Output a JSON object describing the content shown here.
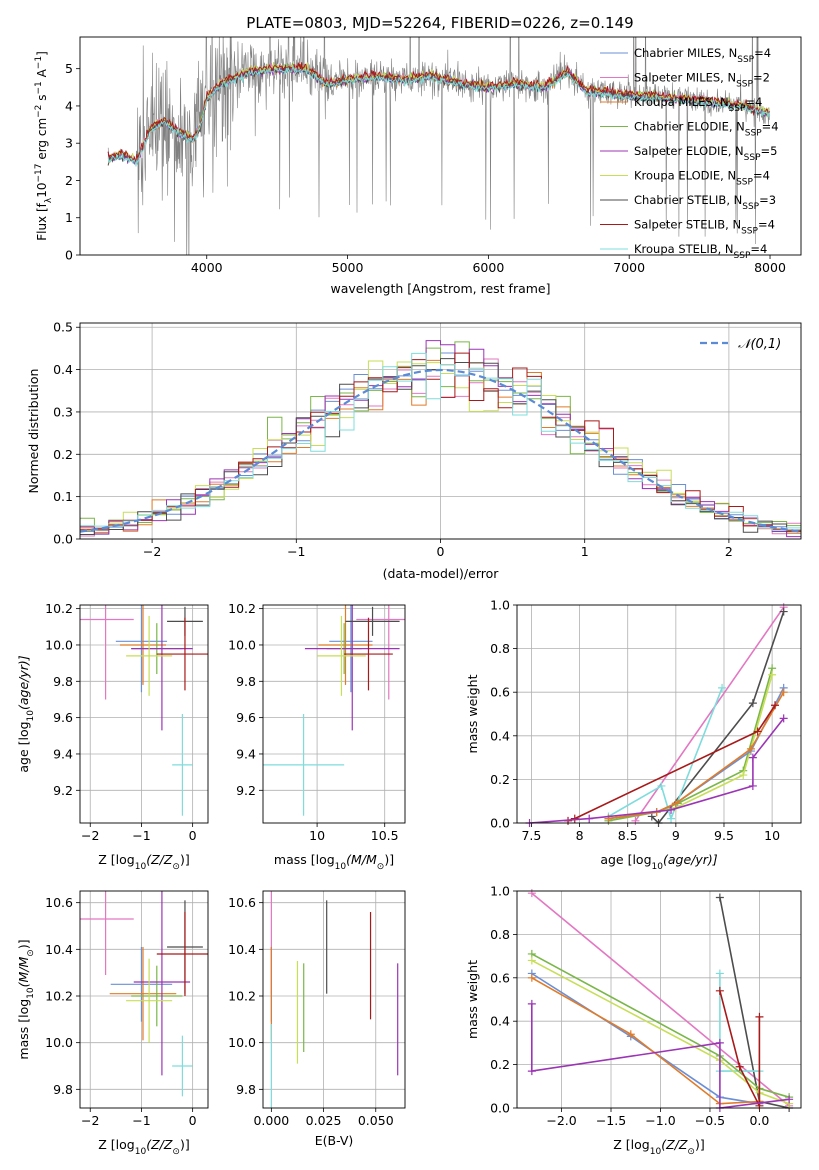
{
  "figure": {
    "title": "PLATE=0803, MJD=52264, FIBERID=0226, z=0.149"
  },
  "chart_data": [
    {
      "id": "spectrum",
      "type": "line",
      "title": "PLATE=0803, MJD=52264, FIBERID=0226, z=0.149",
      "xlabel": "wavelength [Angstrom, rest frame]",
      "ylabel_parts": [
        "Flux [f",
        "λ",
        "10",
        "−17",
        " erg cm",
        "−2",
        " s",
        "−1",
        " A",
        "−1",
        "]"
      ],
      "xlim": [
        3100,
        8220
      ],
      "ylim": [
        0,
        5.85
      ],
      "xticks": [
        4000,
        5000,
        6000,
        7000,
        8000
      ],
      "yticks": [
        0,
        1,
        2,
        3,
        4,
        5
      ],
      "grid": false,
      "legend_position": "top-right",
      "data_color": "#808080",
      "data_knots": [
        [
          3300,
          2.6
        ],
        [
          3400,
          2.7
        ],
        [
          3500,
          2.5
        ],
        [
          3600,
          3.4
        ],
        [
          3700,
          3.6
        ],
        [
          3800,
          3.3
        ],
        [
          3900,
          3.1
        ],
        [
          3950,
          3.4
        ],
        [
          4000,
          4.2
        ],
        [
          4100,
          4.6
        ],
        [
          4300,
          4.9
        ],
        [
          4500,
          5.0
        ],
        [
          4700,
          5.0
        ],
        [
          4861,
          4.6
        ],
        [
          5000,
          4.7
        ],
        [
          5200,
          4.8
        ],
        [
          5400,
          4.7
        ],
        [
          5600,
          4.8
        ],
        [
          5800,
          4.6
        ],
        [
          6000,
          4.5
        ],
        [
          6200,
          4.6
        ],
        [
          6400,
          4.5
        ],
        [
          6563,
          4.9
        ],
        [
          6700,
          4.4
        ],
        [
          7000,
          4.3
        ],
        [
          7300,
          4.2
        ],
        [
          7600,
          4.1
        ],
        [
          7800,
          4.0
        ],
        [
          8000,
          3.8
        ]
      ],
      "noise_regions": [
        [
          3500,
          4200,
          0.9
        ],
        [
          4200,
          4900,
          0.45
        ],
        [
          4900,
          5800,
          0.28
        ],
        [
          5800,
          7000,
          0.22
        ],
        [
          7000,
          8000,
          0.18
        ]
      ],
      "models": [
        {
          "name": "Chabrier MILES, N",
          "sub": "SSP",
          "suffix": "=4",
          "color": "#6b8fd6",
          "offset": 0.0
        },
        {
          "name": "Salpeter MILES, N",
          "sub": "SSP",
          "suffix": "=2",
          "color": "#e377c2",
          "offset": 0.03
        },
        {
          "name": "Kroupa MILES, N",
          "sub": "SSP",
          "suffix": "=4",
          "color": "#e07b28",
          "offset": -0.03
        },
        {
          "name": "Chabrier ELODIE, N",
          "sub": "SSP",
          "suffix": "=4",
          "color": "#7ab648",
          "offset": 0.02
        },
        {
          "name": "Salpeter ELODIE, N",
          "sub": "SSP",
          "suffix": "=5",
          "color": "#9c35b5",
          "offset": -0.02
        },
        {
          "name": "Kroupa ELODIE, N",
          "sub": "SSP",
          "suffix": "=4",
          "color": "#c7de57",
          "offset": 0.04
        },
        {
          "name": "Chabrier STELIB, N",
          "sub": "SSP",
          "suffix": "=3",
          "color": "#4d4d4d",
          "offset": -0.04
        },
        {
          "name": "Salpeter STELIB, N",
          "sub": "SSP",
          "suffix": "=4",
          "color": "#a81919",
          "offset": 0.05
        },
        {
          "name": "Kroupa STELIB, N",
          "sub": "SSP",
          "suffix": "=4",
          "color": "#7fdcdc",
          "offset": -0.05
        }
      ]
    },
    {
      "id": "residuals",
      "type": "line",
      "xlabel": "(data-model)/error",
      "ylabel": "Normed distribution",
      "xlim": [
        -2.5,
        2.5
      ],
      "ylim": [
        0,
        0.51
      ],
      "xticks": [
        -2,
        -1,
        0,
        1,
        2
      ],
      "yticks": [
        0.0,
        0.1,
        0.2,
        0.3,
        0.4,
        0.5
      ],
      "grid": true,
      "legend_position": "top-right",
      "gaussian": {
        "label": "𝒩(0,1)",
        "mean": 0,
        "std": 1,
        "color": "#5b8bd6"
      },
      "bin_edges_range": [
        -2.5,
        2.5
      ],
      "n_bins": 50
    },
    {
      "id": "age_vs_Z",
      "type": "scatter",
      "xlabel_parts": [
        "Z [log",
        "10",
        "(Z/Z",
        "⊙",
        ")]"
      ],
      "ylabel_parts": [
        "age  [log",
        "10",
        "(age/yr)]"
      ],
      "xlim": [
        -2.2,
        0.3
      ],
      "ylim": [
        9.02,
        10.22
      ],
      "xticks": [
        -2,
        -1,
        0
      ],
      "yticks": [
        9.2,
        9.4,
        9.6,
        9.8,
        10.0,
        10.2
      ],
      "grid": true,
      "points": [
        {
          "color": "#6b8fd6",
          "x": -1.0,
          "xerr": 0.5,
          "y": 10.02,
          "yerr": 0.28
        },
        {
          "color": "#e377c2",
          "x": -1.7,
          "xerr": 0.55,
          "y": 10.14,
          "yerr": 0.44
        },
        {
          "color": "#e07b28",
          "x": -0.97,
          "xerr": 0.45,
          "y": 10.0,
          "yerr": 0.22
        },
        {
          "color": "#7ab648",
          "x": -0.7,
          "xerr": 0.5,
          "y": 9.98,
          "yerr": 0.14
        },
        {
          "color": "#9c35b5",
          "x": -0.6,
          "xerr": 0.6,
          "y": 9.98,
          "yerr": 0.45
        },
        {
          "color": "#c7de57",
          "x": -0.85,
          "xerr": 0.45,
          "y": 9.94,
          "yerr": 0.22
        },
        {
          "color": "#4d4d4d",
          "x": -0.15,
          "xerr": 0.35,
          "y": 10.13,
          "yerr": 0.08
        },
        {
          "color": "#a81919",
          "x": -0.15,
          "xerr": 0.55,
          "y": 9.95,
          "yerr": 0.2
        },
        {
          "color": "#7fdcdc",
          "x": -0.2,
          "xerr": 0.2,
          "y": 9.34,
          "yerr": 0.28
        }
      ]
    },
    {
      "id": "age_vs_mass",
      "type": "scatter",
      "xlabel_parts": [
        "mass [log",
        "10",
        "(M/M",
        "⊙",
        ")]"
      ],
      "ylabel": "",
      "xlim": [
        9.6,
        10.65
      ],
      "ylim": [
        9.02,
        10.22
      ],
      "xticks": [
        10.0,
        10.5
      ],
      "yticks": [
        9.2,
        9.4,
        9.6,
        9.8,
        10.0,
        10.2
      ],
      "grid": true,
      "points": [
        {
          "color": "#6b8fd6",
          "x": 10.25,
          "xerr": 0.16,
          "y": 10.02,
          "yerr": 0.28
        },
        {
          "color": "#e377c2",
          "x": 10.53,
          "xerr": 0.24,
          "y": 10.14,
          "yerr": 0.44
        },
        {
          "color": "#e07b28",
          "x": 10.21,
          "xerr": 0.2,
          "y": 10.0,
          "yerr": 0.22
        },
        {
          "color": "#7ab648",
          "x": 10.2,
          "xerr": 0.13,
          "y": 9.98,
          "yerr": 0.14
        },
        {
          "color": "#9c35b5",
          "x": 10.26,
          "xerr": 0.35,
          "y": 9.98,
          "yerr": 0.45
        },
        {
          "color": "#c7de57",
          "x": 10.18,
          "xerr": 0.18,
          "y": 9.94,
          "yerr": 0.22
        },
        {
          "color": "#4d4d4d",
          "x": 10.41,
          "xerr": 0.2,
          "y": 10.13,
          "yerr": 0.08
        },
        {
          "color": "#a81919",
          "x": 10.38,
          "xerr": 0.18,
          "y": 9.95,
          "yerr": 0.2
        },
        {
          "color": "#7fdcdc",
          "x": 9.9,
          "xerr": 0.3,
          "y": 9.34,
          "yerr": 0.28
        }
      ]
    },
    {
      "id": "massweight_vs_age",
      "type": "line",
      "xlabel_parts": [
        "age  [log",
        "10",
        "(age/yr)]"
      ],
      "ylabel": "mass weight",
      "xlim": [
        7.35,
        10.3
      ],
      "ylim": [
        0,
        1.0
      ],
      "xticks": [
        7.5,
        8.0,
        8.5,
        9.0,
        9.5,
        10.0
      ],
      "yticks": [
        0.0,
        0.2,
        0.4,
        0.6,
        0.8,
        1.0
      ],
      "grid": true,
      "series": [
        {
          "color": "#e377c2",
          "points": [
            [
              8.58,
              0.01
            ],
            [
              10.12,
              0.99
            ]
          ]
        },
        {
          "color": "#4d4d4d",
          "points": [
            [
              8.75,
              0.03
            ],
            [
              8.82,
              0.0
            ],
            [
              9.8,
              0.55
            ],
            [
              10.12,
              0.97
            ]
          ]
        },
        {
          "color": "#7fdcdc",
          "points": [
            [
              8.3,
              0.03
            ],
            [
              8.85,
              0.17
            ],
            [
              8.95,
              0.02
            ],
            [
              9.48,
              0.62
            ]
          ]
        },
        {
          "color": "#7ab648",
          "points": [
            [
              8.3,
              0.01
            ],
            [
              8.8,
              0.05
            ],
            [
              9.02,
              0.09
            ],
            [
              9.7,
              0.24
            ],
            [
              10.0,
              0.71
            ]
          ]
        },
        {
          "color": "#c7de57",
          "points": [
            [
              8.3,
              0.02
            ],
            [
              8.8,
              0.05
            ],
            [
              9.0,
              0.07
            ],
            [
              9.7,
              0.22
            ],
            [
              10.0,
              0.68
            ]
          ]
        },
        {
          "color": "#6b8fd6",
          "points": [
            [
              8.3,
              0.02
            ],
            [
              8.8,
              0.05
            ],
            [
              9.0,
              0.09
            ],
            [
              9.78,
              0.33
            ],
            [
              10.12,
              0.62
            ]
          ]
        },
        {
          "color": "#e07b28",
          "points": [
            [
              8.3,
              0.02
            ],
            [
              8.8,
              0.05
            ],
            [
              9.0,
              0.09
            ],
            [
              9.78,
              0.34
            ],
            [
              10.12,
              0.6
            ]
          ]
        },
        {
          "color": "#a81919",
          "points": [
            [
              7.88,
              0.01
            ],
            [
              7.95,
              0.02
            ],
            [
              9.85,
              0.42
            ],
            [
              10.03,
              0.54
            ]
          ]
        },
        {
          "color": "#9c35b5",
          "points": [
            [
              7.48,
              0.0
            ],
            [
              8.1,
              0.02
            ],
            [
              8.95,
              0.06
            ],
            [
              9.8,
              0.17
            ],
            [
              9.8,
              0.3
            ],
            [
              10.12,
              0.48
            ]
          ]
        }
      ]
    },
    {
      "id": "mass_vs_Z",
      "type": "scatter",
      "xlabel_parts": [
        "Z [log",
        "10",
        "(Z/Z",
        "⊙",
        ")]"
      ],
      "ylabel_parts": [
        "mass [log",
        "10",
        "(M/M",
        "⊙",
        ")]"
      ],
      "xlim": [
        -2.2,
        0.3
      ],
      "ylim": [
        9.72,
        10.65
      ],
      "xticks": [
        -2,
        -1,
        0
      ],
      "yticks": [
        9.8,
        10.0,
        10.2,
        10.4,
        10.6
      ],
      "grid": true,
      "points": [
        {
          "color": "#6b8fd6",
          "x": -1.0,
          "xerr": 0.6,
          "y": 10.25,
          "yerr": 0.16
        },
        {
          "color": "#e377c2",
          "x": -1.7,
          "xerr": 0.55,
          "y": 10.53,
          "yerr": 0.24
        },
        {
          "color": "#e07b28",
          "x": -0.97,
          "xerr": 0.65,
          "y": 10.21,
          "yerr": 0.2
        },
        {
          "color": "#7ab648",
          "x": -0.7,
          "xerr": 0.5,
          "y": 10.2,
          "yerr": 0.13
        },
        {
          "color": "#9c35b5",
          "x": -0.6,
          "xerr": 0.55,
          "y": 10.26,
          "yerr": 0.4
        },
        {
          "color": "#c7de57",
          "x": -0.85,
          "xerr": 0.45,
          "y": 10.18,
          "yerr": 0.18
        },
        {
          "color": "#4d4d4d",
          "x": -0.15,
          "xerr": 0.35,
          "y": 10.41,
          "yerr": 0.2
        },
        {
          "color": "#a81919",
          "x": -0.15,
          "xerr": 0.55,
          "y": 10.38,
          "yerr": 0.18
        },
        {
          "color": "#7fdcdc",
          "x": -0.2,
          "xerr": 0.2,
          "y": 9.9,
          "yerr": 0.13
        }
      ]
    },
    {
      "id": "mass_vs_ebv",
      "type": "scatter",
      "xlabel": "E(B-V)",
      "ylabel": "",
      "xlim": [
        -0.004,
        0.064
      ],
      "ylim": [
        9.72,
        10.65
      ],
      "xticks": [
        0.0,
        0.025,
        0.05
      ],
      "xtick_labels": [
        "0.000",
        "0.025",
        "0.050"
      ],
      "yticks": [
        9.8,
        10.0,
        10.2,
        10.4,
        10.6
      ],
      "grid": true,
      "points": [
        {
          "color": "#6b8fd6",
          "x": 0.0,
          "y": 10.25,
          "yerr": 0.16
        },
        {
          "color": "#e377c2",
          "x": 0.0,
          "y": 10.45,
          "yerr": 0.24
        },
        {
          "color": "#e07b28",
          "x": 0.0,
          "y": 10.21,
          "yerr": 0.2
        },
        {
          "color": "#7ab648",
          "x": 0.0155,
          "y": 10.15,
          "yerr": 0.19
        },
        {
          "color": "#9c35b5",
          "x": 0.0605,
          "y": 10.1,
          "yerr": 0.24
        },
        {
          "color": "#c7de57",
          "x": 0.0125,
          "y": 10.13,
          "yerr": 0.22
        },
        {
          "color": "#4d4d4d",
          "x": 0.0265,
          "y": 10.41,
          "yerr": 0.2
        },
        {
          "color": "#a81919",
          "x": 0.0475,
          "y": 10.33,
          "yerr": 0.23
        },
        {
          "color": "#7fdcdc",
          "x": 0.0,
          "y": 9.9,
          "yerr": 0.18
        }
      ]
    },
    {
      "id": "massweight_vs_Z",
      "type": "line",
      "xlabel_parts": [
        "Z [log",
        "10",
        "(Z/Z",
        "⊙",
        ")]"
      ],
      "ylabel": "mass weight",
      "xlim": [
        -2.45,
        0.42
      ],
      "ylim": [
        0,
        1.0
      ],
      "xticks": [
        -2.0,
        -1.5,
        -1.0,
        -0.5,
        0.0
      ],
      "xtick_labels": [
        "−2.0",
        "−1.5",
        "−1.0",
        "−0.5",
        "0.0"
      ],
      "yticks": [
        0.0,
        0.2,
        0.4,
        0.6,
        0.8,
        1.0
      ],
      "grid": true,
      "series": [
        {
          "color": "#e377c2",
          "points": [
            [
              -2.3,
              0.99
            ],
            [
              0.3,
              0.01
            ]
          ]
        },
        {
          "color": "#4d4d4d",
          "points": [
            [
              -0.4,
              0.97
            ],
            [
              0.0,
              0.03
            ],
            [
              0.3,
              0.0
            ]
          ]
        },
        {
          "color": "#7fdcdc",
          "points": [
            [
              -0.4,
              0.62
            ],
            [
              -0.4,
              0.17
            ],
            [
              0.0,
              0.17
            ],
            [
              0.0,
              0.02
            ]
          ]
        },
        {
          "color": "#7ab648",
          "points": [
            [
              -2.3,
              0.71
            ],
            [
              -0.4,
              0.24
            ],
            [
              0.0,
              0.09
            ],
            [
              0.3,
              0.05
            ]
          ]
        },
        {
          "color": "#c7de57",
          "points": [
            [
              -2.3,
              0.68
            ],
            [
              -0.4,
              0.22
            ],
            [
              0.0,
              0.07
            ],
            [
              0.3,
              0.02
            ]
          ]
        },
        {
          "color": "#6b8fd6",
          "points": [
            [
              -2.3,
              0.62
            ],
            [
              -1.3,
              0.33
            ],
            [
              -0.4,
              0.05
            ],
            [
              0.0,
              0.02
            ]
          ]
        },
        {
          "color": "#e07b28",
          "points": [
            [
              -2.3,
              0.6
            ],
            [
              -1.3,
              0.34
            ],
            [
              -0.4,
              0.02
            ],
            [
              0.0,
              0.03
            ]
          ]
        },
        {
          "color": "#a81919",
          "points": [
            [
              -0.4,
              0.54
            ],
            [
              -0.2,
              0.19
            ],
            [
              0.0,
              0.01
            ],
            [
              0.0,
              0.42
            ]
          ]
        },
        {
          "color": "#9c35b5",
          "points": [
            [
              -2.3,
              0.48
            ],
            [
              -2.3,
              0.17
            ],
            [
              -0.4,
              0.3
            ],
            [
              -0.4,
              0.0
            ],
            [
              0.3,
              0.04
            ]
          ]
        }
      ]
    }
  ]
}
